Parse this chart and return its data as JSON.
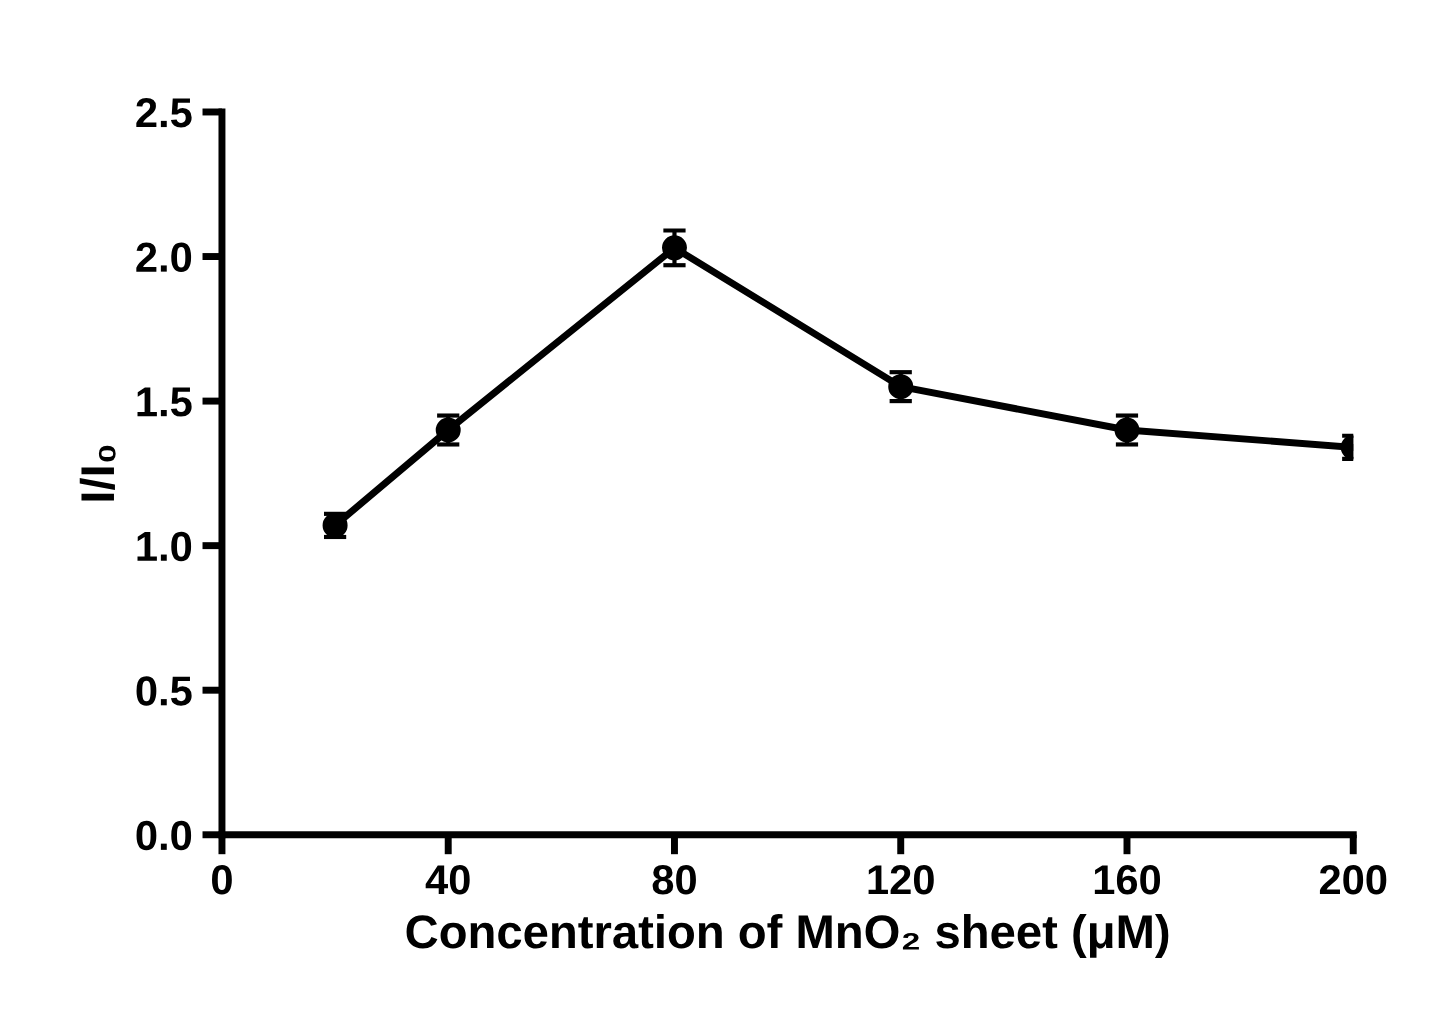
{
  "chart_data": {
    "type": "line",
    "xlabel": "Concentration of MnO₂ sheet (μM)",
    "ylabel": "I/I₀",
    "x": [
      20,
      40,
      80,
      120,
      160,
      200
    ],
    "series": [
      {
        "color": "#000000",
        "values": [
          1.07,
          1.4,
          2.03,
          1.55,
          1.4,
          1.34
        ],
        "errors": [
          0.04,
          0.05,
          0.06,
          0.05,
          0.05,
          0.04
        ]
      }
    ],
    "xlim": [
      0,
      200
    ],
    "xticks": [
      0,
      40,
      80,
      120,
      160,
      200
    ],
    "ylim": [
      0,
      2.5
    ],
    "yticks": [
      {
        "value": 0,
        "label": "0.0"
      },
      0.5,
      {
        "value": 1,
        "label": "1.0"
      },
      1.5,
      {
        "value": 2,
        "label": "2.0"
      },
      2.5
    ],
    "marker": "circle",
    "line_style": "solid",
    "grid": false,
    "legend": false
  }
}
